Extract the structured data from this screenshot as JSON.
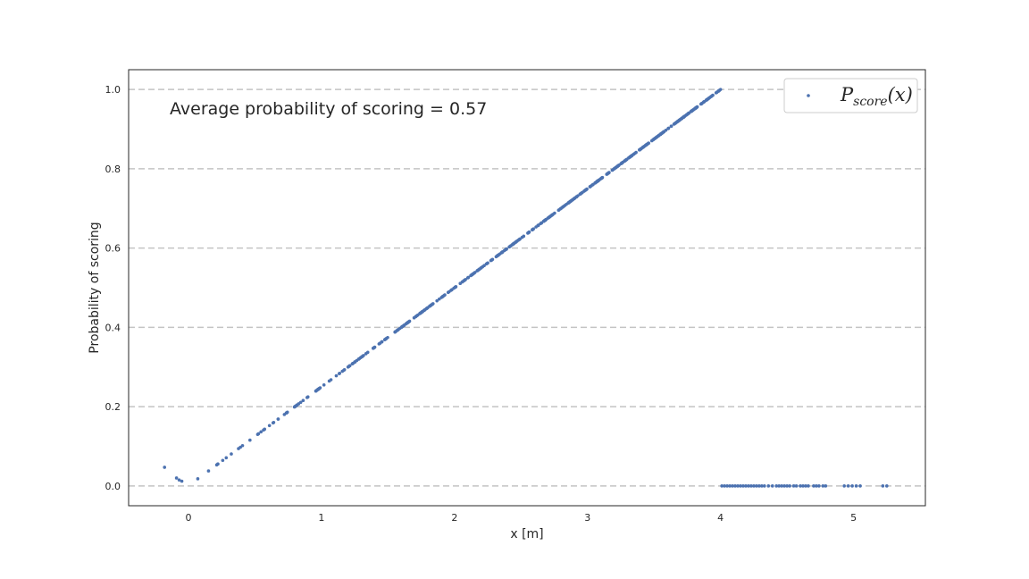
{
  "chart_data": {
    "type": "scatter",
    "title": "",
    "xlabel": "x [m]",
    "ylabel": "Probability of scoring",
    "xlim": [
      -0.45,
      5.54
    ],
    "ylim": [
      -0.05,
      1.05
    ],
    "xticks": [
      0,
      1,
      2,
      3,
      4,
      5
    ],
    "yticks": [
      0.0,
      0.2,
      0.4,
      0.6,
      0.8,
      1.0
    ],
    "ytick_labels": [
      "0.0",
      "0.2",
      "0.4",
      "0.6",
      "0.8",
      "1.0"
    ],
    "grid": "horizontal dashed",
    "legend_position": "upper-right",
    "annotation": "Average probability of scoring = 0.57",
    "series": [
      {
        "name": "P",
        "name_subscript": "score",
        "name_suffix": "(x)",
        "color": "#4c72b0",
        "segments": [
          {
            "kind": "points",
            "x": [
              -0.18,
              -0.09,
              -0.07,
              -0.05,
              0.07
            ],
            "y": [
              0.047,
              0.02,
              0.015,
              0.012,
              0.018
            ]
          },
          {
            "kind": "linear",
            "x_start": 0.14,
            "x_end": 4.0,
            "y_start": 0.035,
            "y_end": 1.0,
            "points": 520
          },
          {
            "kind": "points",
            "x": [
              4.01,
              4.03,
              4.05,
              4.07,
              4.09,
              4.11,
              4.13,
              4.15,
              4.17,
              4.19,
              4.21,
              4.23,
              4.25,
              4.27,
              4.29,
              4.31,
              4.33,
              4.36,
              4.39,
              4.42,
              4.44,
              4.46,
              4.48,
              4.5,
              4.52,
              4.55,
              4.57,
              4.6,
              4.62,
              4.64,
              4.66,
              4.7,
              4.72,
              4.74,
              4.77,
              4.79,
              4.93,
              4.96,
              4.99,
              5.02,
              5.05,
              5.22,
              5.25
            ],
            "y": [
              0,
              0,
              0,
              0,
              0,
              0,
              0,
              0,
              0,
              0,
              0,
              0,
              0,
              0,
              0,
              0,
              0,
              0,
              0,
              0,
              0,
              0,
              0,
              0,
              0,
              0,
              0,
              0,
              0,
              0,
              0,
              0,
              0,
              0,
              0,
              0,
              0,
              0,
              0,
              0,
              0,
              0,
              0
            ]
          }
        ]
      }
    ]
  }
}
